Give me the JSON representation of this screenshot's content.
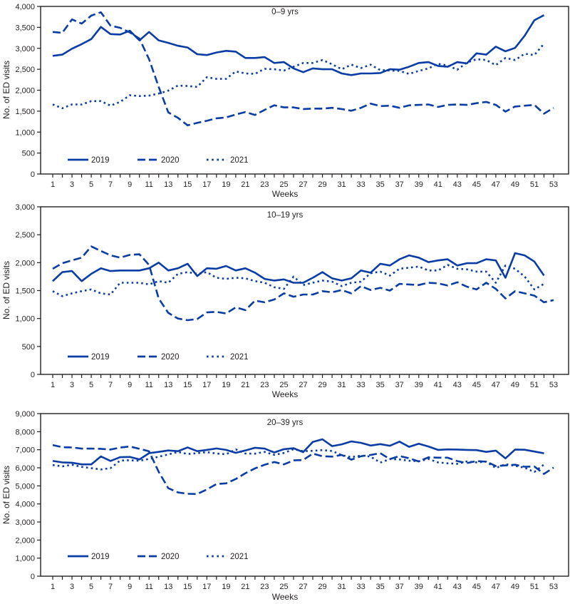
{
  "figure": {
    "series_color": "#0a3ca6",
    "frame_color": "#231f20"
  },
  "chart_data": [
    {
      "type": "line",
      "panel_label": "0–9 yrs",
      "xlabel": "Weeks",
      "ylabel": "No. of ED visits",
      "xlim": [
        1,
        53
      ],
      "ylim": [
        0,
        4000
      ],
      "x_tick_labels": [
        "1",
        "3",
        "5",
        "7",
        "9",
        "11",
        "13",
        "15",
        "17",
        "19",
        "21",
        "23",
        "25",
        "27",
        "29",
        "31",
        "33",
        "35",
        "37",
        "39",
        "41",
        "43",
        "45",
        "47",
        "49",
        "51",
        "53"
      ],
      "y_ticks": [
        0,
        500,
        1000,
        1500,
        2000,
        2500,
        3000,
        3500,
        4000
      ],
      "y_tick_labels": [
        "0",
        "500",
        "1,000",
        "1,500",
        "2,000",
        "2,500",
        "3,000",
        "3,500",
        "4,000"
      ],
      "grid": false,
      "legend_position": "bottom-left",
      "series": [
        {
          "name": "2019",
          "style": "solid",
          "values": [
            2820,
            2850,
            2990,
            3100,
            3220,
            3510,
            3340,
            3330,
            3420,
            3190,
            3390,
            3190,
            3130,
            3060,
            3020,
            2860,
            2840,
            2900,
            2940,
            2920,
            2770,
            2770,
            2790,
            2650,
            2670,
            2520,
            2430,
            2520,
            2500,
            2500,
            2400,
            2360,
            2400,
            2400,
            2410,
            2500,
            2490,
            2560,
            2650,
            2670,
            2580,
            2560,
            2670,
            2640,
            2880,
            2850,
            3040,
            2930,
            3010,
            3300,
            3670,
            3790
          ]
        },
        {
          "name": "2020",
          "style": "dashed",
          "values": [
            3390,
            3370,
            3690,
            3590,
            3780,
            3860,
            3540,
            3490,
            3380,
            3230,
            2740,
            2080,
            1470,
            1340,
            1160,
            1220,
            1270,
            1330,
            1350,
            1420,
            1480,
            1410,
            1530,
            1640,
            1590,
            1590,
            1550,
            1560,
            1560,
            1580,
            1550,
            1510,
            1580,
            1680,
            1620,
            1630,
            1580,
            1640,
            1650,
            1660,
            1600,
            1650,
            1660,
            1650,
            1690,
            1720,
            1650,
            1490,
            1610,
            1630,
            1650,
            1440,
            1580
          ]
        },
        {
          "name": "2021",
          "style": "dotted",
          "values": [
            1660,
            1570,
            1660,
            1660,
            1740,
            1740,
            1630,
            1720,
            1880,
            1860,
            1870,
            1920,
            1990,
            2110,
            2100,
            2080,
            2310,
            2270,
            2270,
            2450,
            2400,
            2390,
            2510,
            2500,
            2470,
            2560,
            2650,
            2650,
            2720,
            2620,
            2500,
            2610,
            2530,
            2610,
            2480,
            2470,
            2460,
            2390,
            2460,
            2520,
            2630,
            2590,
            2490,
            2660,
            2740,
            2720,
            2600,
            2770,
            2720,
            2870,
            2840,
            3110
          ]
        }
      ]
    },
    {
      "type": "line",
      "panel_label": "10–19 yrs",
      "xlabel": "Weeks",
      "ylabel": "No. of ED visits",
      "xlim": [
        1,
        53
      ],
      "ylim": [
        0,
        3000
      ],
      "x_tick_labels": [
        "1",
        "3",
        "5",
        "7",
        "9",
        "11",
        "13",
        "15",
        "17",
        "19",
        "21",
        "23",
        "25",
        "27",
        "29",
        "31",
        "33",
        "35",
        "37",
        "39",
        "41",
        "43",
        "45",
        "47",
        "49",
        "51",
        "53"
      ],
      "y_ticks": [
        0,
        500,
        1000,
        1500,
        2000,
        2500,
        3000
      ],
      "y_tick_labels": [
        "0",
        "500",
        "1,000",
        "1,500",
        "2,000",
        "2,500",
        "3,000"
      ],
      "grid": false,
      "legend_position": "bottom-left",
      "series": [
        {
          "name": "2019",
          "style": "solid",
          "values": [
            1670,
            1830,
            1850,
            1670,
            1800,
            1900,
            1850,
            1860,
            1860,
            1860,
            1900,
            2000,
            1860,
            1900,
            1980,
            1760,
            1900,
            1890,
            1940,
            1860,
            1900,
            1820,
            1710,
            1680,
            1700,
            1640,
            1640,
            1730,
            1830,
            1720,
            1680,
            1720,
            1860,
            1820,
            1980,
            1950,
            2060,
            2130,
            2090,
            2010,
            2040,
            2060,
            1950,
            1990,
            1990,
            2060,
            2040,
            1730,
            2170,
            2130,
            2020,
            1770
          ]
        },
        {
          "name": "2020",
          "style": "dashed",
          "values": [
            1890,
            1990,
            2040,
            2090,
            2290,
            2210,
            2130,
            2090,
            2140,
            2150,
            1960,
            1360,
            1100,
            1000,
            970,
            990,
            1110,
            1120,
            1090,
            1200,
            1150,
            1320,
            1290,
            1340,
            1450,
            1390,
            1430,
            1430,
            1490,
            1470,
            1510,
            1450,
            1580,
            1510,
            1550,
            1500,
            1620,
            1610,
            1600,
            1640,
            1630,
            1590,
            1650,
            1570,
            1520,
            1640,
            1530,
            1360,
            1490,
            1450,
            1410,
            1290,
            1330
          ]
        },
        {
          "name": "2021",
          "style": "dotted",
          "values": [
            1490,
            1400,
            1450,
            1490,
            1520,
            1450,
            1430,
            1640,
            1640,
            1640,
            1610,
            1670,
            1640,
            1800,
            1830,
            1800,
            1830,
            1730,
            1710,
            1730,
            1720,
            1670,
            1640,
            1560,
            1530,
            1750,
            1600,
            1640,
            1680,
            1660,
            1580,
            1640,
            1660,
            1810,
            1840,
            1770,
            1890,
            1910,
            1930,
            1860,
            1860,
            1960,
            1890,
            1880,
            1840,
            1840,
            1640,
            1950,
            1890,
            1750,
            1520,
            1620
          ]
        }
      ]
    },
    {
      "type": "line",
      "panel_label": "20–39 yrs",
      "xlabel": "Weeks",
      "ylabel": "No. of ED visits",
      "xlim": [
        1,
        53
      ],
      "ylim": [
        0,
        9000
      ],
      "x_tick_labels": [
        "1",
        "3",
        "5",
        "7",
        "9",
        "11",
        "13",
        "15",
        "17",
        "19",
        "21",
        "23",
        "25",
        "27",
        "29",
        "31",
        "33",
        "35",
        "37",
        "39",
        "41",
        "43",
        "45",
        "47",
        "49",
        "51",
        "53"
      ],
      "y_ticks": [
        0,
        1000,
        2000,
        3000,
        4000,
        5000,
        6000,
        7000,
        8000,
        9000
      ],
      "y_tick_labels": [
        "0",
        "1,000",
        "2,000",
        "3,000",
        "4,000",
        "5,000",
        "6,000",
        "7,000",
        "8,000",
        "9,000"
      ],
      "grid": false,
      "legend_position": "bottom-left",
      "series": [
        {
          "name": "2019",
          "style": "solid",
          "values": [
            6380,
            6300,
            6280,
            6190,
            6190,
            6630,
            6380,
            6590,
            6600,
            6460,
            6810,
            6880,
            6960,
            6920,
            7130,
            6920,
            6990,
            7070,
            6990,
            6830,
            6960,
            7110,
            7060,
            6850,
            7030,
            7080,
            6870,
            7430,
            7580,
            7200,
            7300,
            7460,
            7380,
            7230,
            7310,
            7220,
            7450,
            7160,
            7330,
            7180,
            6990,
            7020,
            7010,
            6990,
            6980,
            6880,
            6950,
            6520,
            7010,
            7000,
            6900,
            6800
          ]
        },
        {
          "name": "2020",
          "style": "dashed",
          "values": [
            7260,
            7140,
            7130,
            7060,
            7060,
            7050,
            7010,
            7120,
            7180,
            7050,
            6910,
            5780,
            4870,
            4640,
            4560,
            4550,
            4800,
            5100,
            5140,
            5380,
            5700,
            5970,
            6170,
            6320,
            6190,
            6410,
            6430,
            6790,
            6640,
            6620,
            6710,
            6450,
            6640,
            6710,
            6810,
            6480,
            6650,
            6530,
            6350,
            6580,
            6560,
            6560,
            6370,
            6260,
            6370,
            6340,
            6100,
            6130,
            6170,
            6060,
            6070,
            5660,
            6010
          ]
        },
        {
          "name": "2021",
          "style": "dotted",
          "values": [
            6150,
            6080,
            6170,
            6050,
            5980,
            5910,
            5980,
            6400,
            6420,
            6390,
            6490,
            6610,
            6740,
            6880,
            6760,
            6810,
            6870,
            6790,
            6750,
            7020,
            6790,
            6780,
            6880,
            6720,
            6820,
            7030,
            6920,
            6940,
            6980,
            6930,
            6700,
            6590,
            6680,
            6620,
            6290,
            6480,
            6460,
            6390,
            6360,
            6490,
            6300,
            6250,
            6220,
            6350,
            6300,
            6340,
            5990,
            6200,
            6110,
            6000,
            5770,
            6180
          ]
        }
      ]
    }
  ]
}
